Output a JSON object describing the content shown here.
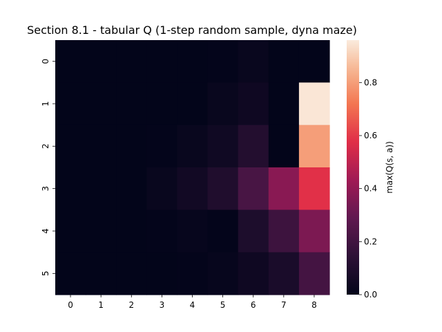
{
  "chart_data": {
    "type": "heatmap",
    "title": "Section 8.1 - tabular Q (1-step random sample, dyna maze)",
    "x_ticks": [
      "0",
      "1",
      "2",
      "3",
      "4",
      "5",
      "6",
      "7",
      "8"
    ],
    "y_ticks": [
      "0",
      "1",
      "2",
      "3",
      "4",
      "5"
    ],
    "values": [
      [
        0.0,
        0.0,
        0.0,
        0.0,
        0.0,
        0.005,
        0.02,
        0.0,
        0.0
      ],
      [
        0.0,
        0.0,
        0.0,
        0.0,
        0.0,
        0.02,
        0.04,
        0.0,
        0.95
      ],
      [
        0.0,
        0.0,
        0.0,
        0.005,
        0.02,
        0.045,
        0.11,
        0.0,
        0.8
      ],
      [
        0.0,
        0.0,
        0.0,
        0.02,
        0.05,
        0.1,
        0.22,
        0.38,
        0.58
      ],
      [
        0.0,
        0.0,
        0.0,
        0.005,
        0.015,
        0.005,
        0.09,
        0.19,
        0.35
      ],
      [
        0.0,
        0.0,
        0.0,
        0.0,
        0.005,
        0.015,
        0.04,
        0.08,
        0.21
      ]
    ],
    "vmin": 0.0,
    "vmax": 0.96,
    "colormap": "rocket",
    "colorbar": {
      "label": "max(Q(s, a))",
      "ticks": [
        "0.0",
        "0.2",
        "0.4",
        "0.6",
        "0.8"
      ],
      "tick_values": [
        0.0,
        0.2,
        0.4,
        0.6,
        0.8
      ]
    }
  }
}
